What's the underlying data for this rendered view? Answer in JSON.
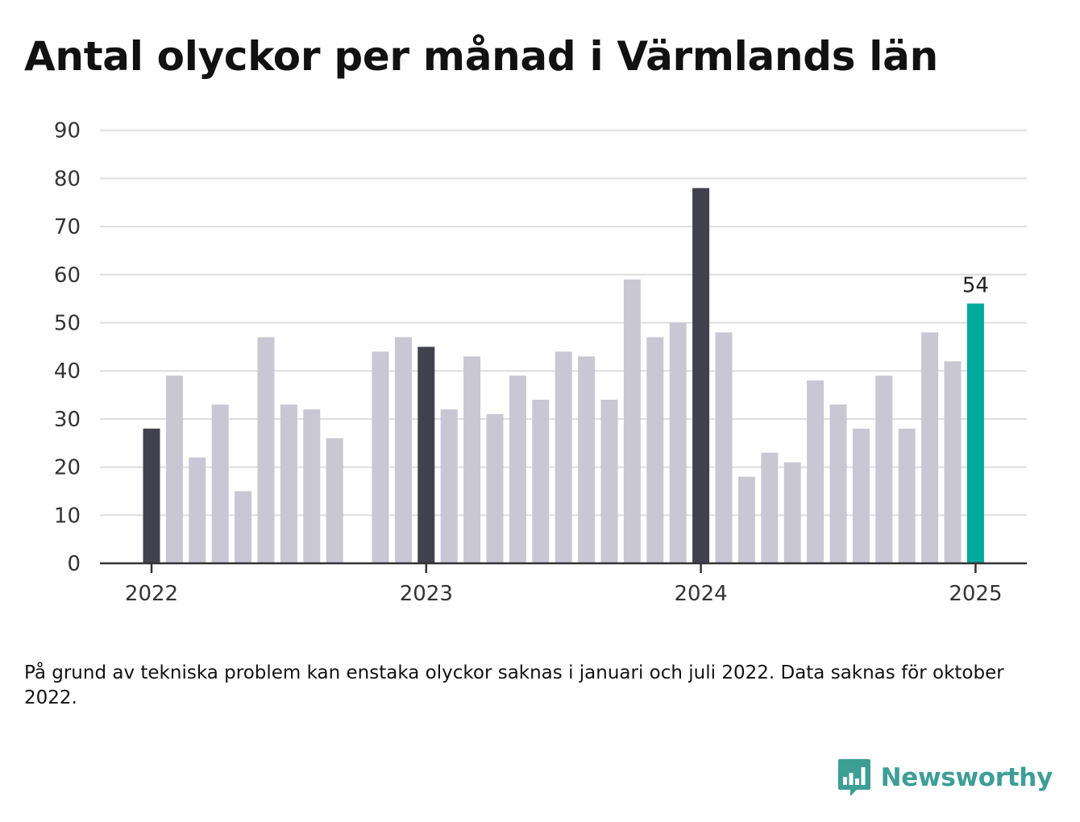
{
  "title": "Antal olyckor per månad i Värmlands län",
  "footnote": "På grund av tekniska problem kan enstaka olyckor saknas i januari och juli 2022. Data saknas för oktober 2022.",
  "brand": {
    "name": "Newsworthy",
    "color": "#3d9e96",
    "icon": "bar-chart-bubble-icon"
  },
  "colors": {
    "regular": "#c8c7d3",
    "january": "#42414f",
    "latest": "#00a99d",
    "grid": "#dddddd",
    "axis": "#333333"
  },
  "chart_data": {
    "type": "bar",
    "title": "Antal olyckor per månad i Värmlands län",
    "xlabel": "",
    "ylabel": "",
    "ylim": [
      0,
      90
    ],
    "yticks": [
      "0",
      "10",
      "20",
      "30",
      "40",
      "50",
      "60",
      "70",
      "80",
      "90"
    ],
    "xticks": [
      "2022",
      "2023",
      "2024",
      "2025"
    ],
    "grid": true,
    "legend": "none",
    "annotation": {
      "category": "2025-01",
      "text": "54"
    },
    "categories": [
      "2022-01",
      "2022-02",
      "2022-03",
      "2022-04",
      "2022-05",
      "2022-06",
      "2022-07",
      "2022-08",
      "2022-09",
      "2022-10",
      "2022-11",
      "2022-12",
      "2023-01",
      "2023-02",
      "2023-03",
      "2023-04",
      "2023-05",
      "2023-06",
      "2023-07",
      "2023-08",
      "2023-09",
      "2023-10",
      "2023-11",
      "2023-12",
      "2024-01",
      "2024-02",
      "2024-03",
      "2024-04",
      "2024-05",
      "2024-06",
      "2024-07",
      "2024-08",
      "2024-09",
      "2024-10",
      "2024-11",
      "2024-12",
      "2025-01"
    ],
    "values": [
      28,
      39,
      22,
      33,
      15,
      47,
      33,
      32,
      26,
      null,
      44,
      47,
      45,
      32,
      43,
      31,
      39,
      34,
      44,
      43,
      34,
      59,
      47,
      50,
      78,
      48,
      18,
      23,
      21,
      38,
      33,
      28,
      39,
      28,
      48,
      42,
      54
    ]
  }
}
